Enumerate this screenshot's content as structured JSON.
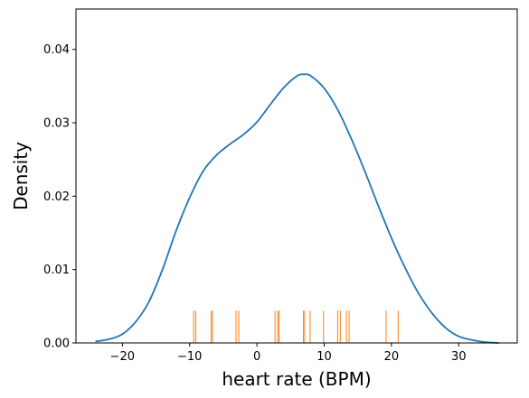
{
  "chart_data": {
    "type": "line",
    "title": "",
    "xlabel": "heart rate (BPM)",
    "ylabel": "Density",
    "xlim": [
      -26.9,
      38.7
    ],
    "ylim": [
      0,
      0.0455
    ],
    "xticks": [
      -20,
      -10,
      0,
      10,
      20,
      30
    ],
    "xtick_labels": [
      "−20",
      "−10",
      "0",
      "10",
      "20",
      "30"
    ],
    "yticks": [
      0,
      0.01,
      0.02,
      0.03,
      0.04
    ],
    "ytick_labels": [
      "0.00",
      "0.01",
      "0.02",
      "0.03",
      "0.04"
    ],
    "grid": false,
    "series": [
      {
        "kind": "kde-line",
        "color": "#1f77b4",
        "x": [
          -24,
          -22,
          -20,
          -18,
          -16,
          -14,
          -12,
          -10,
          -8,
          -6,
          -4,
          -2,
          0,
          2,
          4,
          6,
          7,
          8,
          10,
          12,
          14,
          16,
          18,
          20,
          22,
          24,
          26,
          28,
          30,
          32,
          34,
          36
        ],
        "y": [
          0.0002,
          0.0005,
          0.0012,
          0.0029,
          0.0057,
          0.0101,
          0.0153,
          0.0198,
          0.0234,
          0.0256,
          0.0271,
          0.0284,
          0.0301,
          0.0325,
          0.0348,
          0.0364,
          0.0366,
          0.0364,
          0.0347,
          0.0318,
          0.0279,
          0.0235,
          0.0188,
          0.0143,
          0.0103,
          0.0068,
          0.0041,
          0.0021,
          0.0009,
          0.0004,
          0.0001,
          0.0
        ]
      },
      {
        "kind": "rug",
        "color": "#ff7f0e",
        "height": 0.0044,
        "x": [
          -9.4,
          -9.1,
          -6.8,
          -6.6,
          -3.1,
          -2.7,
          2.7,
          3.1,
          3.3,
          6.9,
          7.1,
          7.9,
          9.9,
          12.0,
          12.4,
          13.3,
          13.7,
          19.2,
          21.0
        ]
      }
    ]
  }
}
